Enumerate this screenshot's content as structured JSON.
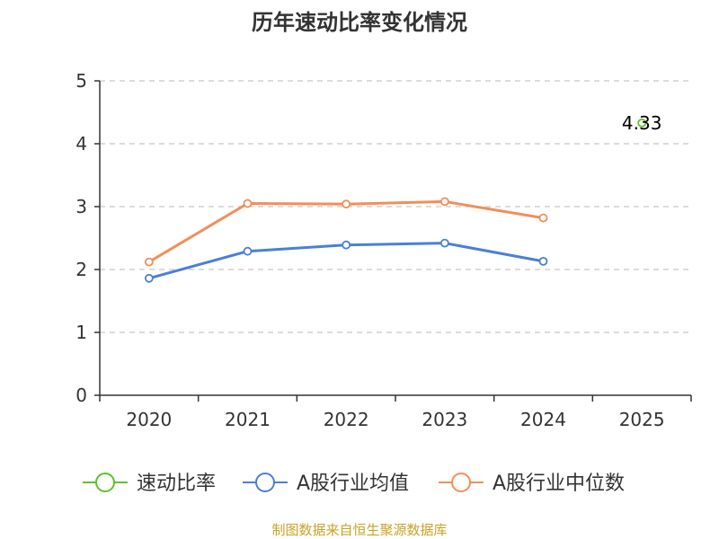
{
  "chart_data": {
    "type": "line",
    "title": "历年速动比率变化情况",
    "categories": [
      "2020",
      "2021",
      "2022",
      "2023",
      "2024",
      "2025"
    ],
    "ylim": [
      0,
      5
    ],
    "yticks": [
      "0",
      "1",
      "2",
      "3",
      "4",
      "5"
    ],
    "grid": true,
    "legend_position": "bottom",
    "series": [
      {
        "name": "速动比率",
        "color": "#5cc22c",
        "values": [
          null,
          null,
          null,
          null,
          null,
          4.33
        ],
        "labels": [
          null,
          null,
          null,
          null,
          null,
          "4.33"
        ]
      },
      {
        "name": "A股行业均值",
        "color": "#4a7fd8",
        "values": [
          1.86,
          2.29,
          2.39,
          2.42,
          2.13,
          null
        ]
      },
      {
        "name": "A股行业中位数",
        "color": "#f28e59",
        "values": [
          2.12,
          3.05,
          3.04,
          3.08,
          2.82,
          null
        ]
      }
    ]
  },
  "source_text": "制图数据来自恒生聚源数据库"
}
